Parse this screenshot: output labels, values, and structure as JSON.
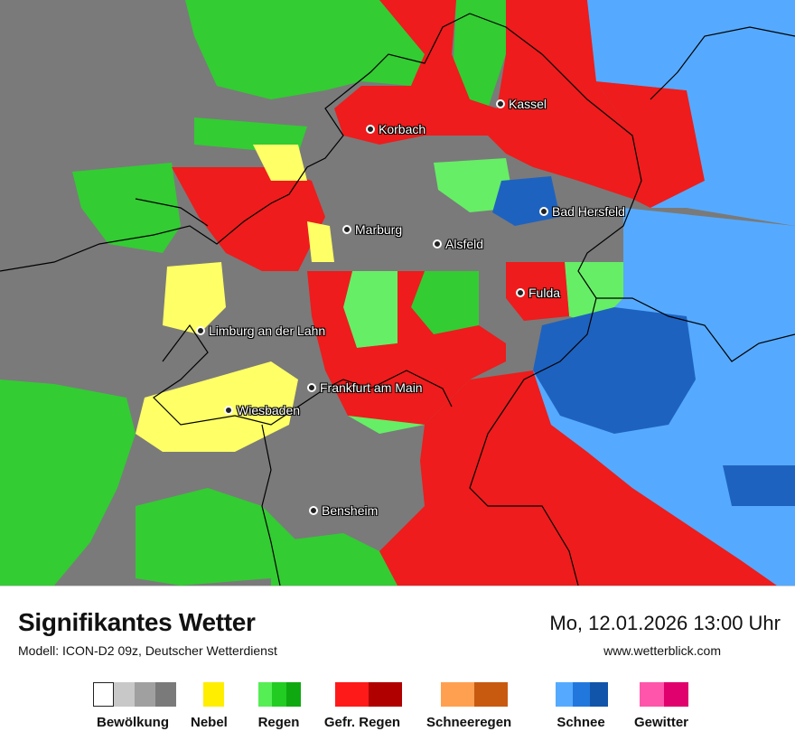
{
  "map": {
    "cities": [
      {
        "name": "Kassel"
      },
      {
        "name": "Korbach"
      },
      {
        "name": "Bad Hersfeld"
      },
      {
        "name": "Marburg"
      },
      {
        "name": "Alsfeld"
      },
      {
        "name": "Fulda"
      },
      {
        "name": "Limburg an der Lahn"
      },
      {
        "name": "Frankfurt am Main"
      },
      {
        "name": "Wiesbaden"
      },
      {
        "name": "Bensheim"
      }
    ]
  },
  "footer": {
    "title": "Signifikantes Wetter",
    "subtitle": "Modell: ICON-D2 09z, Deutscher Wetterdienst",
    "datetime": "Mo, 12.01.2026 13:00 Uhr",
    "website": "www.wetterblick.com"
  },
  "legend": [
    {
      "label": "Bewölkung",
      "colors": [
        "#ffffff",
        "#c8c8c8",
        "#a0a0a0",
        "#7a7a7a"
      ]
    },
    {
      "label": "Nebel",
      "colors": [
        "#ffee00"
      ]
    },
    {
      "label": "Regen",
      "colors": [
        "#55ee55",
        "#22cc22",
        "#10a810"
      ]
    },
    {
      "label": "Gefr. Regen",
      "colors": [
        "#ff1a1a",
        "#b00000"
      ]
    },
    {
      "label": "Schneeregen",
      "colors": [
        "#ffa050",
        "#c85a10"
      ]
    },
    {
      "label": "Schnee",
      "colors": [
        "#55aaff",
        "#2277dd",
        "#1155aa"
      ]
    },
    {
      "label": "Gewitter",
      "colors": [
        "#ff55aa",
        "#e0006e"
      ]
    }
  ],
  "colors": {
    "cloud": "#7a7a7a",
    "fog": "#ffff66",
    "rain": "#33cc33",
    "rain_light": "#66ee66",
    "freezing_rain": "#ee1c1c",
    "snow": "#55aaff",
    "snow_dark": "#1e62c0"
  }
}
